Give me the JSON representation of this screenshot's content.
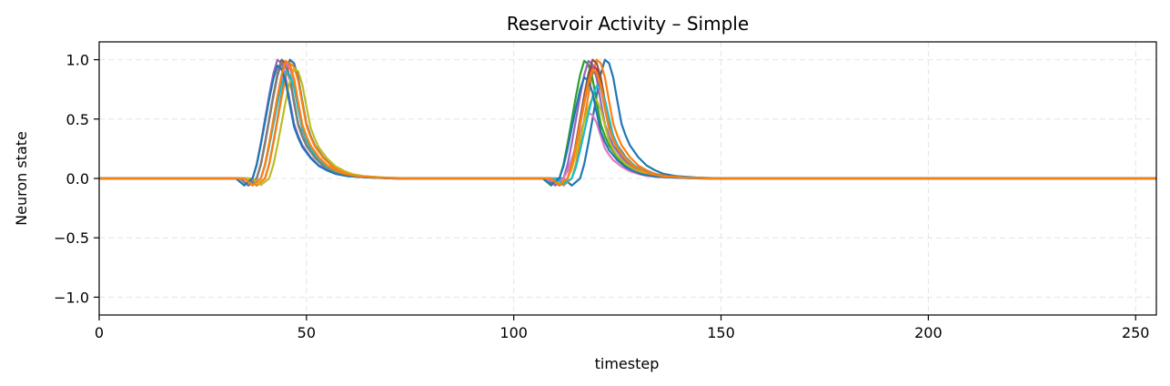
{
  "chart_data": {
    "type": "line",
    "title": "Reservoir Activity – Simple",
    "xlabel": "timestep",
    "ylabel": "Neuron state",
    "xlim": [
      0,
      255
    ],
    "ylim": [
      -1.15,
      1.15
    ],
    "xticks": [
      0,
      50,
      100,
      150,
      200,
      250
    ],
    "yticks": [
      -1.0,
      -0.5,
      0.0,
      0.5,
      1.0
    ],
    "ytick_labels": [
      "−1.0",
      "−0.5",
      "0.0",
      "0.5",
      "1.0"
    ],
    "grid": true,
    "pulse_shape": [
      [
        -4,
        0
      ],
      [
        -2,
        -0.06
      ],
      [
        0,
        0
      ],
      [
        1,
        0.12
      ],
      [
        2,
        0.3
      ],
      [
        3,
        0.5
      ],
      [
        4,
        0.7
      ],
      [
        5,
        0.88
      ],
      [
        6,
        1.0
      ],
      [
        7,
        0.97
      ],
      [
        8,
        0.85
      ],
      [
        9,
        0.65
      ],
      [
        10,
        0.46
      ],
      [
        11,
        0.36
      ],
      [
        12,
        0.28
      ],
      [
        14,
        0.18
      ],
      [
        16,
        0.11
      ],
      [
        18,
        0.07
      ],
      [
        20,
        0.04
      ],
      [
        23,
        0.02
      ],
      [
        28,
        0.008
      ],
      [
        34,
        0
      ]
    ],
    "series": [
      {
        "color": "#1f77b4",
        "color2": "#1f77b4",
        "events": [
          {
            "start": 40,
            "peak": 1.0
          },
          {
            "start": 116,
            "peak": 1.0
          }
        ]
      },
      {
        "color": "#ff7f0e",
        "events": [
          {
            "start": 40,
            "peak": 0.97
          },
          {
            "start": 114,
            "peak": 1.0
          }
        ]
      },
      {
        "color": "#2ca02c",
        "events": [
          {
            "start": 38,
            "peak": 0.98
          },
          {
            "start": 111,
            "peak": 0.99
          }
        ]
      },
      {
        "color": "#d62728",
        "events": [
          {
            "start": 38,
            "peak": 0.99
          },
          {
            "start": 113,
            "peak": 0.95
          }
        ]
      },
      {
        "color": "#9467bd",
        "events": [
          {
            "start": 37,
            "peak": 1.0
          },
          {
            "start": 112,
            "peak": 0.99
          }
        ]
      },
      {
        "color": "#8c564b",
        "events": [
          {
            "start": 38,
            "peak": 1.0
          },
          {
            "start": 113,
            "peak": 1.0
          }
        ]
      },
      {
        "color": "#e377c2",
        "events": [
          {
            "start": 39,
            "peak": 0.96
          },
          {
            "start": 112,
            "peak": 0.55
          }
        ]
      },
      {
        "color": "#7f7f7f",
        "events": [
          {
            "start": 38,
            "peak": 0.98
          },
          {
            "start": 113,
            "peak": 0.9
          }
        ]
      },
      {
        "color": "#bcbd22",
        "events": [
          {
            "start": 41,
            "peak": 0.93
          },
          {
            "start": 113,
            "peak": 0.68
          }
        ]
      },
      {
        "color": "#17becf",
        "events": [
          {
            "start": 39,
            "peak": 0.9
          },
          {
            "start": 114,
            "peak": 0.78
          }
        ]
      },
      {
        "color": "#1f77b4",
        "events": [
          {
            "start": 37,
            "peak": 0.95
          },
          {
            "start": 111,
            "peak": 0.85
          }
        ]
      },
      {
        "color": "#ff7f0e",
        "events": [
          {
            "start": 39,
            "peak": 0.99
          },
          {
            "start": 113,
            "peak": 0.92
          }
        ]
      }
    ]
  }
}
